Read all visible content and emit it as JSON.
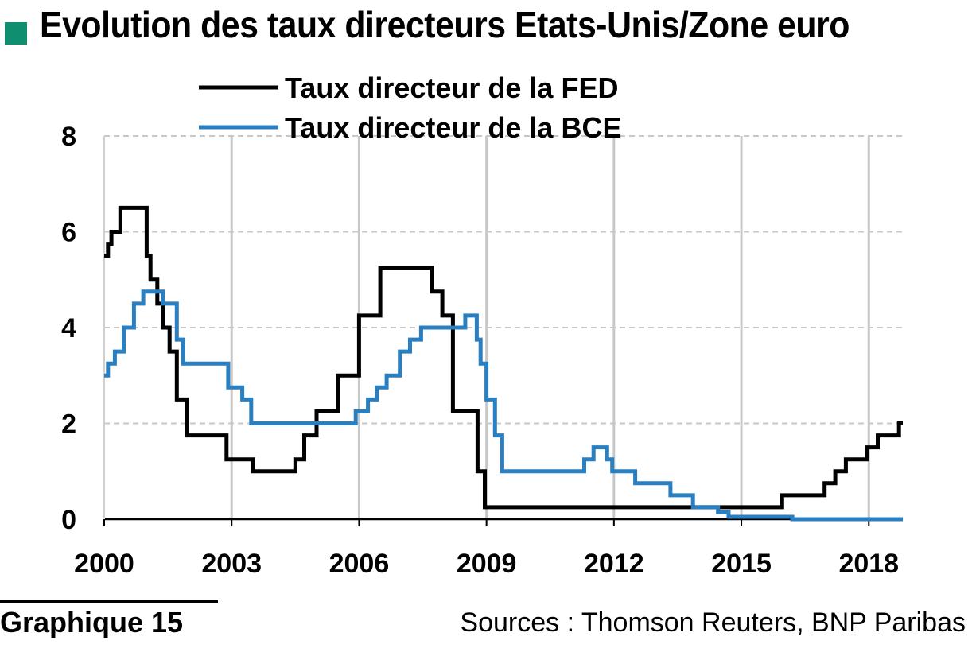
{
  "header": {
    "title": "Evolution des taux directeurs Etats-Unis/Zone euro",
    "marker_color": "#0f8f6f"
  },
  "footer": {
    "graph_label": "Graphique 15",
    "sources": "Sources : Thomson Reuters, BNP Paribas"
  },
  "chart_data": {
    "type": "line",
    "line_shape": "step",
    "xlim": [
      2000,
      2018.8
    ],
    "ylim": [
      0,
      8
    ],
    "x_ticks": [
      2000,
      2003,
      2006,
      2009,
      2012,
      2015,
      2018
    ],
    "x_tick_labels": [
      "2000",
      "2003",
      "2006",
      "2009",
      "2012",
      "2015",
      "2018"
    ],
    "y_ticks": [
      0,
      2,
      4,
      6,
      8
    ],
    "y_tick_labels": [
      "0",
      "2",
      "4",
      "6",
      "8"
    ],
    "grid": true,
    "grid_style": "dashed",
    "legend_position": "top",
    "series": [
      {
        "name": "Taux directeur de la FED",
        "color": "#000000",
        "x": [
          2000.0,
          2000.09,
          2000.17,
          2000.38,
          2001.0,
          2001.09,
          2001.25,
          2001.38,
          2001.54,
          2001.71,
          2001.94,
          2002.88,
          2003.5,
          2004.5,
          2004.71,
          2005.0,
          2005.5,
          2006.0,
          2006.5,
          2007.71,
          2007.96,
          2008.21,
          2008.79,
          2008.96,
          2015.96,
          2016.96,
          2017.21,
          2017.46,
          2017.96,
          2018.21,
          2018.46,
          2018.71,
          2018.8
        ],
        "y": [
          5.5,
          5.75,
          6.0,
          6.5,
          5.5,
          5.0,
          4.5,
          4.0,
          3.5,
          2.5,
          1.75,
          1.25,
          1.0,
          1.25,
          1.75,
          2.25,
          3.0,
          4.25,
          5.25,
          4.75,
          4.25,
          2.25,
          1.0,
          0.25,
          0.5,
          0.75,
          1.0,
          1.25,
          1.5,
          1.75,
          1.75,
          2.0,
          2.0
        ]
      },
      {
        "name": "Taux directeur de la BCE",
        "color": "#2a7fc0",
        "x": [
          2000.0,
          2000.09,
          2000.25,
          2000.46,
          2000.7,
          2000.92,
          2001.38,
          2001.71,
          2001.86,
          2002.92,
          2003.25,
          2003.46,
          2005.92,
          2006.21,
          2006.42,
          2006.65,
          2006.96,
          2007.2,
          2007.46,
          2008.5,
          2008.77,
          2008.86,
          2009.0,
          2009.2,
          2009.37,
          2011.3,
          2011.52,
          2011.84,
          2011.96,
          2012.5,
          2013.33,
          2013.86,
          2014.45,
          2014.7,
          2016.2,
          2018.8
        ],
        "y": [
          3.0,
          3.25,
          3.5,
          4.0,
          4.5,
          4.75,
          4.5,
          3.75,
          3.25,
          2.75,
          2.5,
          2.0,
          2.25,
          2.5,
          2.75,
          3.0,
          3.5,
          3.75,
          4.0,
          4.25,
          3.75,
          3.25,
          2.5,
          1.75,
          1.0,
          1.25,
          1.5,
          1.25,
          1.0,
          0.75,
          0.5,
          0.25,
          0.15,
          0.05,
          0.0,
          0.0
        ]
      }
    ]
  }
}
